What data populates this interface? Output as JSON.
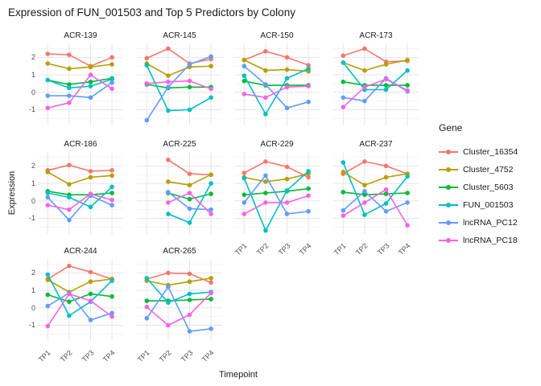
{
  "title": "Expression of FUN_001503 and Top 5 Predictors by Colony",
  "chart_data": {
    "type": "line",
    "title": "Expression of FUN_001503 and Top 5 Predictors by Colony",
    "xlabel": "Timepoint",
    "ylabel": "Expression",
    "legend_title": "Gene",
    "legend_position": "right",
    "grid": true,
    "x_categories": [
      "TP1",
      "TP2",
      "TP3",
      "TP4"
    ],
    "y_ticks": [
      2,
      1,
      0,
      -1
    ],
    "y_minor_ticks": [
      2.5,
      1.5,
      0.5,
      -0.5,
      -1.5
    ],
    "ylim": [
      -1.9,
      2.8
    ],
    "series": [
      {
        "name": "Cluster_16354",
        "color": "#F8766D"
      },
      {
        "name": "Cluster_4752",
        "color": "#B79F00"
      },
      {
        "name": "Cluster_5603",
        "color": "#00BA38"
      },
      {
        "name": "FUN_001503",
        "color": "#00BFC4"
      },
      {
        "name": "lncRNA_PC12",
        "color": "#619CFF"
      },
      {
        "name": "lncRNA_PC18",
        "color": "#F564E3"
      }
    ],
    "facets": [
      {
        "name": "ACR-139",
        "row": 0,
        "col": 0,
        "x_labels": false,
        "values": {
          "Cluster_16354": [
            2.2,
            2.15,
            1.5,
            2.0
          ],
          "Cluster_4752": [
            1.65,
            1.35,
            1.45,
            1.6
          ],
          "Cluster_5603": [
            0.7,
            0.45,
            0.6,
            0.8
          ],
          "FUN_001503": [
            0.7,
            0.25,
            0.35,
            0.75
          ],
          "lncRNA_PC12": [
            -0.2,
            -0.2,
            -0.3,
            0.55
          ],
          "lncRNA_PC18": [
            -0.9,
            -0.6,
            1.0,
            0.2
          ]
        }
      },
      {
        "name": "ACR-145",
        "row": 0,
        "col": 1,
        "x_labels": false,
        "values": {
          "Cluster_16354": [
            1.95,
            2.5,
            1.65,
            1.9
          ],
          "Cluster_4752": [
            1.65,
            0.95,
            1.45,
            1.5
          ],
          "Cluster_5603": [
            0.45,
            0.25,
            0.3,
            0.3
          ],
          "FUN_001503": [
            1.55,
            -1.05,
            -1.0,
            -0.3
          ],
          "lncRNA_PC12": [
            -1.6,
            0.3,
            1.6,
            2.05
          ],
          "lncRNA_PC18": [
            0.5,
            0.6,
            0.65,
            0.2
          ]
        }
      },
      {
        "name": "ACR-150",
        "row": 0,
        "col": 2,
        "x_labels": false,
        "values": {
          "Cluster_16354": [
            1.85,
            2.35,
            2.0,
            1.55
          ],
          "Cluster_4752": [
            1.85,
            1.25,
            1.3,
            1.2
          ],
          "Cluster_5603": [
            0.65,
            0.4,
            0.4,
            0.4
          ],
          "FUN_001503": [
            0.95,
            -1.25,
            0.8,
            1.35
          ],
          "lncRNA_PC12": [
            1.5,
            0.45,
            -0.9,
            -0.55
          ],
          "lncRNA_PC18": [
            -0.1,
            -0.3,
            0.3,
            0.35
          ]
        }
      },
      {
        "name": "ACR-173",
        "row": 0,
        "col": 3,
        "x_labels": false,
        "values": {
          "Cluster_16354": [
            2.1,
            2.5,
            1.75,
            1.8
          ],
          "Cluster_4752": [
            1.7,
            1.25,
            1.6,
            1.85
          ],
          "Cluster_5603": [
            0.6,
            0.4,
            0.4,
            0.4
          ],
          "FUN_001503": [
            1.7,
            0.15,
            0.15,
            1.25
          ],
          "lncRNA_PC12": [
            -0.3,
            -0.5,
            0.8,
            0.05
          ],
          "lncRNA_PC18": [
            -0.85,
            0.3,
            0.75,
            0.1
          ]
        }
      },
      {
        "name": "ACR-186",
        "row": 1,
        "col": 0,
        "x_labels": false,
        "values": {
          "Cluster_16354": [
            1.75,
            2.05,
            1.7,
            1.75
          ],
          "Cluster_4752": [
            1.65,
            0.95,
            1.35,
            1.45
          ],
          "Cluster_5603": [
            0.55,
            0.35,
            0.35,
            0.45
          ],
          "FUN_001503": [
            0.45,
            0.2,
            -0.35,
            0.8
          ],
          "lncRNA_PC12": [
            0.2,
            -1.1,
            0.3,
            -0.25
          ],
          "lncRNA_PC18": [
            -0.25,
            -0.5,
            0.4,
            0.05
          ]
        }
      },
      {
        "name": "ACR-225",
        "row": 1,
        "col": 1,
        "x_labels": false,
        "values": {
          "Cluster_16354": [
            null,
            2.35,
            1.55,
            1.5
          ],
          "Cluster_4752": [
            null,
            1.1,
            0.9,
            1.5
          ],
          "Cluster_5603": [
            null,
            0.45,
            0.1,
            0.4
          ],
          "FUN_001503": [
            null,
            -0.75,
            -1.25,
            1.0
          ],
          "lncRNA_PC12": [
            null,
            0.5,
            -0.45,
            -0.5
          ],
          "lncRNA_PC18": [
            null,
            -0.1,
            0.45,
            -0.75
          ]
        }
      },
      {
        "name": "ACR-229",
        "row": 1,
        "col": 2,
        "x_labels": true,
        "values": {
          "Cluster_16354": [
            1.6,
            2.25,
            1.95,
            1.35
          ],
          "Cluster_4752": [
            1.35,
            1.1,
            1.25,
            1.55
          ],
          "Cluster_5603": [
            0.35,
            0.45,
            0.55,
            0.7
          ],
          "FUN_001503": [
            1.3,
            -1.7,
            0.6,
            1.7
          ],
          "lncRNA_PC12": [
            -0.1,
            1.45,
            -0.75,
            -0.6
          ],
          "lncRNA_PC18": [
            -0.75,
            -0.1,
            -0.1,
            0.3
          ]
        }
      },
      {
        "name": "ACR-237",
        "row": 1,
        "col": 3,
        "x_labels": true,
        "values": {
          "Cluster_16354": [
            1.55,
            2.25,
            2.0,
            1.55
          ],
          "Cluster_4752": [
            1.65,
            0.9,
            1.35,
            1.55
          ],
          "Cluster_5603": [
            0.5,
            0.35,
            0.4,
            0.45
          ],
          "FUN_001503": [
            2.2,
            -0.8,
            -0.15,
            1.4
          ],
          "lncRNA_PC12": [
            -0.55,
            0.55,
            -0.6,
            -0.1
          ],
          "lncRNA_PC18": [
            -0.85,
            -0.1,
            0.65,
            -1.4
          ]
        }
      },
      {
        "name": "ACR-244",
        "row": 2,
        "col": 0,
        "x_labels": true,
        "values": {
          "Cluster_16354": [
            1.65,
            2.4,
            2.05,
            1.65
          ],
          "Cluster_4752": [
            1.6,
            0.9,
            1.5,
            1.65
          ],
          "Cluster_5603": [
            0.75,
            0.35,
            0.8,
            0.65
          ],
          "FUN_001503": [
            1.9,
            -0.45,
            0.35,
            1.55
          ],
          "lncRNA_PC12": [
            0.1,
            0.85,
            -0.7,
            -0.3
          ],
          "lncRNA_PC18": [
            -1.05,
            0.8,
            0.4,
            -0.5
          ]
        }
      },
      {
        "name": "ACR-265",
        "row": 2,
        "col": 1,
        "x_labels": true,
        "values": {
          "Cluster_16354": [
            1.65,
            2.0,
            1.95,
            1.45
          ],
          "Cluster_4752": [
            1.55,
            1.3,
            1.5,
            1.7
          ],
          "Cluster_5603": [
            0.4,
            0.4,
            0.45,
            0.5
          ],
          "FUN_001503": [
            1.7,
            0.3,
            0.8,
            0.9
          ],
          "lncRNA_PC12": [
            -0.6,
            1.2,
            -1.35,
            -1.2
          ],
          "lncRNA_PC18": [
            0.05,
            -1.0,
            -0.4,
            0.85
          ]
        }
      }
    ]
  }
}
